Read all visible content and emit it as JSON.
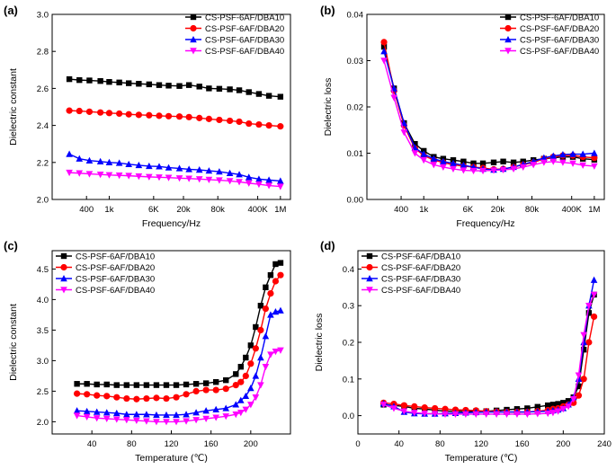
{
  "colors": {
    "s10": "#000000",
    "s20": "#ff0000",
    "s30": "#0000ff",
    "s40": "#ff00ff"
  },
  "chart_data": [
    {
      "panel": "(a)",
      "type": "line",
      "xlabel": "Frequency/Hz",
      "ylabel": "Dielectric constant",
      "xscale": "log",
      "xlim": [
        100,
        1500000
      ],
      "ylim": [
        2.0,
        3.0
      ],
      "xticks": [
        {
          "v": 400,
          "label": "400"
        },
        {
          "v": 1000,
          "label": "1k"
        },
        {
          "v": 6000,
          "label": "6K"
        },
        {
          "v": 20000,
          "label": "20k"
        },
        {
          "v": 80000,
          "label": "80k"
        },
        {
          "v": 400000,
          "label": "400K"
        },
        {
          "v": 1000000,
          "label": "1M"
        }
      ],
      "yticks": [
        {
          "v": 2.0,
          "label": "2.0"
        },
        {
          "v": 2.2,
          "label": "2.2"
        },
        {
          "v": 2.4,
          "label": "2.4"
        },
        {
          "v": 2.6,
          "label": "2.6"
        },
        {
          "v": 2.8,
          "label": "2.8"
        },
        {
          "v": 3.0,
          "label": "3.0"
        }
      ],
      "legend": "top-right",
      "x": [
        200,
        300,
        450,
        700,
        1000,
        1500,
        2200,
        3300,
        5000,
        7500,
        11000,
        17000,
        25000,
        38000,
        56000,
        85000,
        130000,
        190000,
        280000,
        420000,
        630000,
        1000000
      ],
      "series": [
        {
          "name": "CS-PSF-6AF/DBA10",
          "color": "#000000",
          "marker": "square",
          "values": [
            2.65,
            2.645,
            2.643,
            2.64,
            2.635,
            2.632,
            2.628,
            2.625,
            2.622,
            2.618,
            2.615,
            2.613,
            2.618,
            2.61,
            2.6,
            2.598,
            2.595,
            2.59,
            2.58,
            2.57,
            2.56,
            2.555
          ]
        },
        {
          "name": "CS-PSF-6AF/DBA20",
          "color": "#ff0000",
          "marker": "circle",
          "values": [
            2.48,
            2.478,
            2.474,
            2.47,
            2.467,
            2.464,
            2.46,
            2.457,
            2.455,
            2.452,
            2.45,
            2.448,
            2.445,
            2.44,
            2.435,
            2.43,
            2.425,
            2.42,
            2.41,
            2.405,
            2.4,
            2.395
          ]
        },
        {
          "name": "CS-PSF-6AF/DBA30",
          "color": "#0000ff",
          "marker": "triangle-up",
          "values": [
            2.245,
            2.22,
            2.21,
            2.205,
            2.2,
            2.197,
            2.19,
            2.185,
            2.18,
            2.178,
            2.172,
            2.168,
            2.163,
            2.16,
            2.155,
            2.15,
            2.142,
            2.135,
            2.12,
            2.11,
            2.105,
            2.1
          ]
        },
        {
          "name": "CS-PSF-6AF/DBA40",
          "color": "#ff00ff",
          "marker": "triangle-down",
          "values": [
            2.145,
            2.142,
            2.138,
            2.135,
            2.132,
            2.13,
            2.128,
            2.125,
            2.122,
            2.12,
            2.118,
            2.115,
            2.113,
            2.11,
            2.107,
            2.104,
            2.1,
            2.095,
            2.088,
            2.082,
            2.075,
            2.07
          ]
        }
      ]
    },
    {
      "panel": "(b)",
      "type": "line",
      "xlabel": "Frequency/Hz",
      "ylabel": "Dielectric loss",
      "xscale": "log",
      "xlim": [
        100,
        1500000
      ],
      "ylim": [
        0.0,
        0.04
      ],
      "xticks": [
        {
          "v": 400,
          "label": "400"
        },
        {
          "v": 1000,
          "label": "1k"
        },
        {
          "v": 6000,
          "label": "6K"
        },
        {
          "v": 20000,
          "label": "20k"
        },
        {
          "v": 80000,
          "label": "80k"
        },
        {
          "v": 400000,
          "label": "400K"
        },
        {
          "v": 1000000,
          "label": "1M"
        }
      ],
      "yticks": [
        {
          "v": 0.0,
          "label": "0.00"
        },
        {
          "v": 0.01,
          "label": "0.01"
        },
        {
          "v": 0.02,
          "label": "0.02"
        },
        {
          "v": 0.03,
          "label": "0.03"
        },
        {
          "v": 0.04,
          "label": "0.04"
        }
      ],
      "legend": "top-right",
      "x": [
        200,
        300,
        450,
        700,
        1000,
        1500,
        2200,
        3300,
        5000,
        7500,
        11000,
        17000,
        25000,
        38000,
        56000,
        85000,
        130000,
        190000,
        280000,
        420000,
        630000,
        1000000
      ],
      "series": [
        {
          "name": "CS-PSF-6AF/DBA10",
          "color": "#000000",
          "marker": "square",
          "values": [
            0.033,
            0.024,
            0.0165,
            0.012,
            0.0105,
            0.0092,
            0.0088,
            0.0085,
            0.0082,
            0.0078,
            0.0078,
            0.008,
            0.0082,
            0.008,
            0.0082,
            0.0085,
            0.0088,
            0.009,
            0.0092,
            0.0092,
            0.0088,
            0.0086
          ]
        },
        {
          "name": "CS-PSF-6AF/DBA20",
          "color": "#ff0000",
          "marker": "circle",
          "values": [
            0.034,
            0.0235,
            0.016,
            0.011,
            0.0095,
            0.0085,
            0.008,
            0.0075,
            0.0072,
            0.007,
            0.0068,
            0.0065,
            0.0066,
            0.007,
            0.0075,
            0.008,
            0.0088,
            0.0092,
            0.0095,
            0.0095,
            0.0092,
            0.009
          ]
        },
        {
          "name": "CS-PSF-6AF/DBA30",
          "color": "#0000ff",
          "marker": "triangle-up",
          "values": [
            0.032,
            0.024,
            0.0165,
            0.0112,
            0.0098,
            0.0088,
            0.0082,
            0.0078,
            0.0074,
            0.007,
            0.0066,
            0.0064,
            0.0066,
            0.007,
            0.0076,
            0.0082,
            0.009,
            0.0094,
            0.0097,
            0.0098,
            0.0098,
            0.01
          ]
        },
        {
          "name": "CS-PSF-6AF/DBA40",
          "color": "#ff00ff",
          "marker": "triangle-down",
          "values": [
            0.03,
            0.022,
            0.0145,
            0.01,
            0.0085,
            0.0075,
            0.007,
            0.0066,
            0.0063,
            0.0062,
            0.0062,
            0.0063,
            0.0064,
            0.0066,
            0.007,
            0.0075,
            0.008,
            0.0082,
            0.008,
            0.0078,
            0.0074,
            0.0072
          ]
        }
      ]
    },
    {
      "panel": "(c)",
      "type": "line",
      "xlabel": "Temperature (℃)",
      "ylabel": "Dielectric constant",
      "xscale": "linear",
      "xlim": [
        0,
        240
      ],
      "ylim": [
        1.8,
        4.8
      ],
      "xticks": [
        {
          "v": 40,
          "label": "40"
        },
        {
          "v": 80,
          "label": "80"
        },
        {
          "v": 120,
          "label": "120"
        },
        {
          "v": 160,
          "label": "160"
        },
        {
          "v": 200,
          "label": "200"
        }
      ],
      "yticks": [
        {
          "v": 2.0,
          "label": "2.0"
        },
        {
          "v": 2.5,
          "label": "2.5"
        },
        {
          "v": 3.0,
          "label": "3.0"
        },
        {
          "v": 3.5,
          "label": "3.5"
        },
        {
          "v": 4.0,
          "label": "4.0"
        },
        {
          "v": 4.5,
          "label": "4.5"
        }
      ],
      "legend": "top-left",
      "x": [
        25,
        35,
        45,
        55,
        65,
        75,
        85,
        95,
        105,
        115,
        125,
        135,
        145,
        155,
        165,
        175,
        185,
        190,
        195,
        200,
        205,
        210,
        215,
        220,
        225,
        230
      ],
      "series": [
        {
          "name": "CS-PSF-6AF/DBA10",
          "color": "#000000",
          "marker": "square",
          "values": [
            2.62,
            2.62,
            2.61,
            2.61,
            2.6,
            2.6,
            2.6,
            2.6,
            2.6,
            2.6,
            2.6,
            2.61,
            2.62,
            2.63,
            2.65,
            2.68,
            2.78,
            2.9,
            3.05,
            3.25,
            3.55,
            3.9,
            4.2,
            4.4,
            4.58,
            4.6
          ]
        },
        {
          "name": "CS-PSF-6AF/DBA20",
          "color": "#ff0000",
          "marker": "circle",
          "values": [
            2.46,
            2.45,
            2.43,
            2.42,
            2.4,
            2.38,
            2.37,
            2.38,
            2.39,
            2.38,
            2.4,
            2.45,
            2.5,
            2.52,
            2.52,
            2.54,
            2.6,
            2.65,
            2.75,
            2.95,
            3.2,
            3.5,
            3.85,
            4.1,
            4.3,
            4.4
          ]
        },
        {
          "name": "CS-PSF-6AF/DBA30",
          "color": "#0000ff",
          "marker": "triangle-up",
          "values": [
            2.18,
            2.17,
            2.16,
            2.15,
            2.14,
            2.12,
            2.12,
            2.12,
            2.11,
            2.11,
            2.11,
            2.12,
            2.15,
            2.18,
            2.2,
            2.22,
            2.28,
            2.35,
            2.42,
            2.55,
            2.75,
            3.05,
            3.4,
            3.75,
            3.8,
            3.82
          ]
        },
        {
          "name": "CS-PSF-6AF/DBA40",
          "color": "#ff00ff",
          "marker": "triangle-down",
          "values": [
            2.1,
            2.08,
            2.06,
            2.05,
            2.04,
            2.03,
            2.02,
            2.01,
            2.0,
            2.0,
            2.0,
            2.01,
            2.03,
            2.05,
            2.07,
            2.09,
            2.12,
            2.15,
            2.2,
            2.28,
            2.4,
            2.6,
            2.9,
            3.1,
            3.15,
            3.17
          ]
        }
      ]
    },
    {
      "panel": "(d)",
      "type": "line",
      "xlabel": "Temperature (℃)",
      "ylabel": "Dielectric loss",
      "xscale": "linear",
      "xlim": [
        0,
        240
      ],
      "ylim": [
        -0.05,
        0.45
      ],
      "xticks": [
        {
          "v": 0,
          "label": "0"
        },
        {
          "v": 40,
          "label": "40"
        },
        {
          "v": 80,
          "label": "80"
        },
        {
          "v": 120,
          "label": "120"
        },
        {
          "v": 160,
          "label": "160"
        },
        {
          "v": 200,
          "label": "200"
        },
        {
          "v": 240,
          "label": "240"
        }
      ],
      "yticks": [
        {
          "v": 0.0,
          "label": "0.0"
        },
        {
          "v": 0.1,
          "label": "0.1"
        },
        {
          "v": 0.2,
          "label": "0.2"
        },
        {
          "v": 0.3,
          "label": "0.3"
        },
        {
          "v": 0.4,
          "label": "0.4"
        }
      ],
      "legend": "top-left",
      "x": [
        25,
        35,
        45,
        55,
        65,
        75,
        85,
        95,
        105,
        115,
        125,
        135,
        145,
        155,
        165,
        175,
        185,
        190,
        195,
        200,
        205,
        210,
        215,
        220,
        225,
        230
      ],
      "series": [
        {
          "name": "CS-PSF-6AF/DBA10",
          "color": "#000000",
          "marker": "square",
          "values": [
            0.03,
            0.028,
            0.025,
            0.02,
            0.018,
            0.015,
            0.012,
            0.012,
            0.011,
            0.012,
            0.012,
            0.014,
            0.016,
            0.018,
            0.02,
            0.024,
            0.028,
            0.03,
            0.032,
            0.035,
            0.04,
            0.05,
            0.08,
            0.18,
            0.28,
            0.33
          ]
        },
        {
          "name": "CS-PSF-6AF/DBA20",
          "color": "#ff0000",
          "marker": "circle",
          "values": [
            0.035,
            0.032,
            0.028,
            0.025,
            0.022,
            0.02,
            0.018,
            0.016,
            0.015,
            0.014,
            0.012,
            0.011,
            0.01,
            0.01,
            0.01,
            0.012,
            0.015,
            0.018,
            0.02,
            0.025,
            0.03,
            0.035,
            0.055,
            0.1,
            0.2,
            0.27
          ]
        },
        {
          "name": "CS-PSF-6AF/DBA30",
          "color": "#0000ff",
          "marker": "triangle-up",
          "values": [
            0.033,
            0.025,
            0.01,
            0.006,
            0.005,
            0.005,
            0.006,
            0.007,
            0.008,
            0.009,
            0.01,
            0.01,
            0.01,
            0.01,
            0.01,
            0.011,
            0.012,
            0.014,
            0.016,
            0.02,
            0.03,
            0.05,
            0.1,
            0.2,
            0.3,
            0.37
          ]
        },
        {
          "name": "CS-PSF-6AF/DBA40",
          "color": "#ff00ff",
          "marker": "triangle-down",
          "values": [
            0.03,
            0.02,
            0.012,
            0.008,
            0.006,
            0.005,
            0.004,
            0.004,
            0.004,
            0.004,
            0.004,
            0.004,
            0.004,
            0.004,
            0.004,
            0.005,
            0.006,
            0.008,
            0.012,
            0.018,
            0.025,
            0.045,
            0.11,
            0.22,
            0.3,
            0.33
          ]
        }
      ]
    }
  ]
}
